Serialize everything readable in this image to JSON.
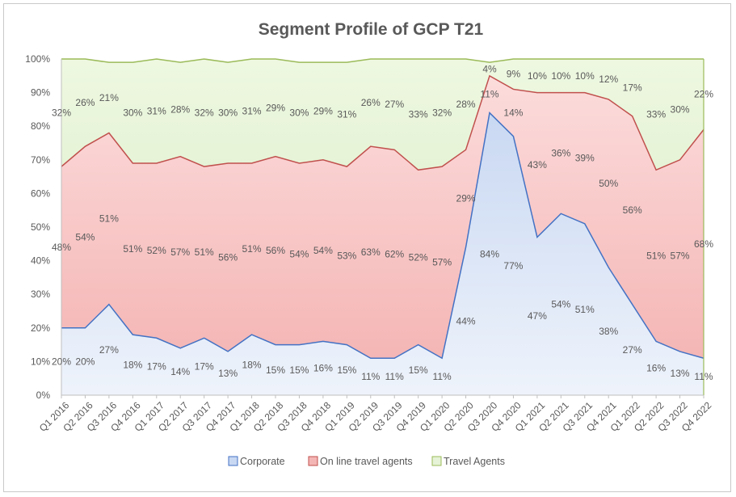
{
  "chart_data": {
    "type": "area",
    "stacked": true,
    "title": "Segment Profile of GCP T21",
    "categories": [
      "Q1 2016",
      "Q2 2016",
      "Q3 2016",
      "Q4 2016",
      "Q1 2017",
      "Q2 2017",
      "Q3 2017",
      "Q4 2017",
      "Q1 2018",
      "Q2 2018",
      "Q3 2018",
      "Q4 2018",
      "Q1 2019",
      "Q2 2019",
      "Q3 2019",
      "Q4 2019",
      "Q1 2020",
      "Q2 2020",
      "Q3 2020",
      "Q4 2020",
      "Q1 2021",
      "Q2 2021",
      "Q3 2021",
      "Q4 2021",
      "Q1 2022",
      "Q2 2022",
      "Q3 2022",
      "Q4 2022"
    ],
    "series": [
      {
        "name": "Corporate",
        "color": "#4472c4",
        "values": [
          20,
          20,
          27,
          18,
          17,
          14,
          17,
          13,
          18,
          15,
          15,
          16,
          15,
          11,
          11,
          15,
          11,
          44,
          84,
          77,
          47,
          54,
          51,
          38,
          27,
          16,
          13,
          11
        ]
      },
      {
        "name": "On line travel agents",
        "color": "#c0504d",
        "values": [
          48,
          54,
          51,
          51,
          52,
          57,
          51,
          56,
          51,
          56,
          54,
          54,
          53,
          63,
          62,
          52,
          57,
          29,
          11,
          14,
          43,
          36,
          39,
          50,
          56,
          51,
          57,
          68
        ]
      },
      {
        "name": "Travel Agents",
        "color": "#9bbb59",
        "values": [
          32,
          26,
          21,
          30,
          31,
          28,
          32,
          30,
          31,
          29,
          30,
          29,
          31,
          26,
          27,
          33,
          32,
          28,
          4,
          9,
          10,
          10,
          10,
          12,
          17,
          33,
          30,
          22
        ]
      }
    ],
    "data_labels": [
      [
        "20%",
        "20%",
        "27%",
        "18%",
        "17%",
        "14%",
        "17%",
        "13%",
        "18%",
        "15%",
        "15%",
        "16%",
        "15%",
        "11%",
        "11%",
        "15%",
        "11%",
        "44%",
        "84%",
        "77%",
        "47%",
        "54%",
        "51%",
        "38%",
        "27%",
        "16%",
        "13%",
        "11%"
      ],
      [
        "48%",
        "54%",
        "51%",
        "51%",
        "52%",
        "57%",
        "51%",
        "56%",
        "51%",
        "56%",
        "54%",
        "54%",
        "53%",
        "63%",
        "62%",
        "52%",
        "57%",
        "29%",
        "11%",
        "14%",
        "43%",
        "36%",
        "39%",
        "50%",
        "56%",
        "51%",
        "57%",
        "68%"
      ],
      [
        "32%",
        "26%",
        "21%",
        "30%",
        "31%",
        "28%",
        "32%",
        "30%",
        "31%",
        "29%",
        "30%",
        "29%",
        "31%",
        "26%",
        "27%",
        "33%",
        "32%",
        "28%",
        "4%",
        "9%",
        "10%",
        "10%",
        "10%",
        "12%",
        "17%",
        "33%",
        "30%",
        "22%"
      ]
    ],
    "y_tick_labels": [
      "0%",
      "10%",
      "20%",
      "30%",
      "40%",
      "50%",
      "60%",
      "70%",
      "80%",
      "90%",
      "100%"
    ],
    "ylim": [
      0,
      100
    ],
    "grid": false,
    "legend_position": "bottom"
  }
}
